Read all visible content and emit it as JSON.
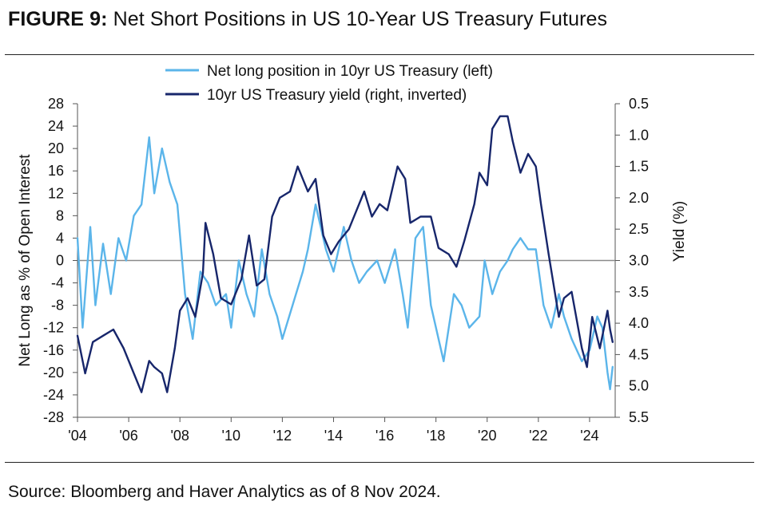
{
  "figure": {
    "title_lead": "FIGURE 9:",
    "title_text": "Net Short Positions in US 10-Year US Treasury Futures",
    "source": "Source: Bloomberg and Haver Analytics as of 8 Nov 2024."
  },
  "chart_data": {
    "type": "line",
    "title": "Net Short Positions in US 10-Year US Treasury Futures",
    "ylabel_left": "Net Long as % of Open Interest",
    "ylabel_right": "Yield (%)",
    "ylim_left": [
      -28,
      28
    ],
    "yticks_left": [
      28,
      24,
      20,
      16,
      12,
      8,
      4,
      0,
      -4,
      -8,
      -12,
      -16,
      -20,
      -24,
      -28
    ],
    "ylim_right": [
      5.5,
      0.5
    ],
    "right_axis_inverted": true,
    "yticks_right": [
      "0.5",
      "1.0",
      "1.5",
      "2.0",
      "2.5",
      "3.0",
      "3.5",
      "4.0",
      "4.5",
      "5.0",
      "5.5"
    ],
    "xlim": [
      2004,
      2025
    ],
    "xtick_labels": [
      "'04",
      "'06",
      "'08",
      "'10",
      "'12",
      "'14",
      "'16",
      "'18",
      "'20",
      "'22",
      "'24"
    ],
    "legend_position": "top-center",
    "zero_line": true,
    "grid": false,
    "series": [
      {
        "name": "Net long position in 10yr US Treasury (left)",
        "axis": "left",
        "color": "#5bb5ea",
        "points": [
          [
            2004.0,
            4
          ],
          [
            2004.2,
            -12
          ],
          [
            2004.5,
            6
          ],
          [
            2004.7,
            -8
          ],
          [
            2005.0,
            3
          ],
          [
            2005.3,
            -6
          ],
          [
            2005.6,
            4
          ],
          [
            2005.9,
            0
          ],
          [
            2006.2,
            8
          ],
          [
            2006.5,
            10
          ],
          [
            2006.8,
            22
          ],
          [
            2007.0,
            12
          ],
          [
            2007.3,
            20
          ],
          [
            2007.6,
            14
          ],
          [
            2007.9,
            10
          ],
          [
            2008.2,
            -6
          ],
          [
            2008.5,
            -14
          ],
          [
            2008.8,
            -2
          ],
          [
            2009.1,
            -4
          ],
          [
            2009.4,
            -8
          ],
          [
            2009.8,
            -6
          ],
          [
            2010.0,
            -12
          ],
          [
            2010.3,
            0
          ],
          [
            2010.6,
            -6
          ],
          [
            2010.9,
            -10
          ],
          [
            2011.2,
            2
          ],
          [
            2011.5,
            -6
          ],
          [
            2011.8,
            -10
          ],
          [
            2012.0,
            -14
          ],
          [
            2012.4,
            -8
          ],
          [
            2012.8,
            -2
          ],
          [
            2013.0,
            2
          ],
          [
            2013.3,
            10
          ],
          [
            2013.7,
            2
          ],
          [
            2014.0,
            -2
          ],
          [
            2014.4,
            6
          ],
          [
            2014.7,
            0
          ],
          [
            2015.0,
            -4
          ],
          [
            2015.3,
            -2
          ],
          [
            2015.7,
            0
          ],
          [
            2016.0,
            -4
          ],
          [
            2016.4,
            2
          ],
          [
            2016.7,
            -6
          ],
          [
            2016.9,
            -12
          ],
          [
            2017.2,
            4
          ],
          [
            2017.5,
            6
          ],
          [
            2017.8,
            -8
          ],
          [
            2018.1,
            -14
          ],
          [
            2018.3,
            -18
          ],
          [
            2018.7,
            -6
          ],
          [
            2019.0,
            -8
          ],
          [
            2019.3,
            -12
          ],
          [
            2019.7,
            -10
          ],
          [
            2019.9,
            0
          ],
          [
            2020.2,
            -6
          ],
          [
            2020.5,
            -2
          ],
          [
            2020.8,
            0
          ],
          [
            2021.0,
            2
          ],
          [
            2021.3,
            4
          ],
          [
            2021.6,
            2
          ],
          [
            2021.9,
            2
          ],
          [
            2022.2,
            -8
          ],
          [
            2022.5,
            -12
          ],
          [
            2022.8,
            -6
          ],
          [
            2023.0,
            -10
          ],
          [
            2023.3,
            -14
          ],
          [
            2023.7,
            -18
          ],
          [
            2024.0,
            -16
          ],
          [
            2024.3,
            -10
          ],
          [
            2024.5,
            -12
          ],
          [
            2024.7,
            -20
          ],
          [
            2024.8,
            -23
          ],
          [
            2024.9,
            -19
          ]
        ]
      },
      {
        "name": "10yr US Treasury yield (right, inverted)",
        "axis": "right",
        "color": "#17266b",
        "points": [
          [
            2004.0,
            4.2
          ],
          [
            2004.3,
            4.8
          ],
          [
            2004.6,
            4.3
          ],
          [
            2005.0,
            4.2
          ],
          [
            2005.4,
            4.1
          ],
          [
            2005.8,
            4.4
          ],
          [
            2006.2,
            4.8
          ],
          [
            2006.5,
            5.1
          ],
          [
            2006.8,
            4.6
          ],
          [
            2007.0,
            4.7
          ],
          [
            2007.3,
            4.8
          ],
          [
            2007.5,
            5.1
          ],
          [
            2007.8,
            4.4
          ],
          [
            2008.0,
            3.8
          ],
          [
            2008.3,
            3.6
          ],
          [
            2008.6,
            3.9
          ],
          [
            2008.9,
            3.2
          ],
          [
            2009.0,
            2.4
          ],
          [
            2009.3,
            2.9
          ],
          [
            2009.6,
            3.6
          ],
          [
            2010.0,
            3.7
          ],
          [
            2010.4,
            3.3
          ],
          [
            2010.7,
            2.6
          ],
          [
            2011.0,
            3.4
          ],
          [
            2011.3,
            3.3
          ],
          [
            2011.6,
            2.3
          ],
          [
            2011.9,
            2.0
          ],
          [
            2012.3,
            1.9
          ],
          [
            2012.6,
            1.5
          ],
          [
            2013.0,
            1.9
          ],
          [
            2013.3,
            1.7
          ],
          [
            2013.6,
            2.6
          ],
          [
            2013.9,
            2.9
          ],
          [
            2014.2,
            2.7
          ],
          [
            2014.6,
            2.5
          ],
          [
            2014.9,
            2.2
          ],
          [
            2015.2,
            1.9
          ],
          [
            2015.5,
            2.3
          ],
          [
            2015.8,
            2.1
          ],
          [
            2016.1,
            2.2
          ],
          [
            2016.5,
            1.5
          ],
          [
            2016.8,
            1.7
          ],
          [
            2017.0,
            2.4
          ],
          [
            2017.4,
            2.3
          ],
          [
            2017.8,
            2.3
          ],
          [
            2018.1,
            2.8
          ],
          [
            2018.5,
            2.9
          ],
          [
            2018.8,
            3.1
          ],
          [
            2019.1,
            2.7
          ],
          [
            2019.5,
            2.1
          ],
          [
            2019.7,
            1.6
          ],
          [
            2020.0,
            1.8
          ],
          [
            2020.2,
            0.9
          ],
          [
            2020.5,
            0.7
          ],
          [
            2020.8,
            0.7
          ],
          [
            2021.0,
            1.1
          ],
          [
            2021.3,
            1.6
          ],
          [
            2021.6,
            1.3
          ],
          [
            2021.9,
            1.5
          ],
          [
            2022.1,
            2.1
          ],
          [
            2022.4,
            2.9
          ],
          [
            2022.8,
            3.9
          ],
          [
            2023.0,
            3.6
          ],
          [
            2023.3,
            3.5
          ],
          [
            2023.7,
            4.4
          ],
          [
            2023.9,
            4.7
          ],
          [
            2024.1,
            3.9
          ],
          [
            2024.4,
            4.4
          ],
          [
            2024.7,
            3.8
          ],
          [
            2024.8,
            4.1
          ],
          [
            2024.9,
            4.3
          ]
        ]
      }
    ]
  }
}
